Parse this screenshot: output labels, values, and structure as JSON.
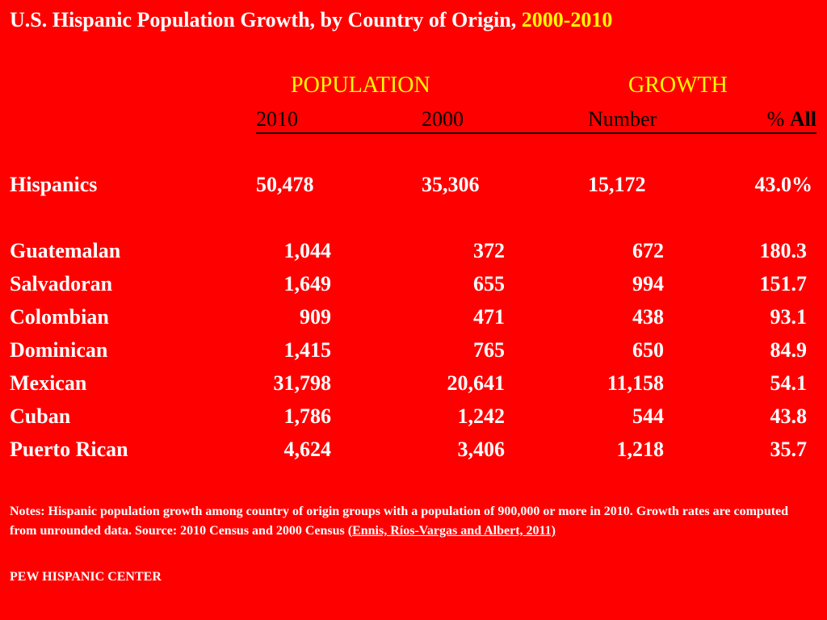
{
  "title": {
    "main": "U.S. Hispanic Population Growth, by Country of Origin, ",
    "years": "2000-2010"
  },
  "headers": {
    "population": "POPULATION",
    "growth": "GROWTH",
    "col_2010": "2010",
    "col_2000": "2000",
    "col_number": "Number",
    "col_pct_symbol": "% ",
    "col_pct_all": "All"
  },
  "total_row": {
    "label": "Hispanics",
    "pop_2010": "50,478",
    "pop_2000": "35,306",
    "growth_number": "15,172",
    "growth_pct": "43.0%"
  },
  "rows": [
    {
      "label": "Guatemalan",
      "pop_2010": "1,044",
      "pop_2000": "372",
      "growth_number": "672",
      "growth_pct": "180.3"
    },
    {
      "label": "Salvadoran",
      "pop_2010": "1,649",
      "pop_2000": "655",
      "growth_number": "994",
      "growth_pct": "151.7"
    },
    {
      "label": "Colombian",
      "pop_2010": "909",
      "pop_2000": "471",
      "growth_number": "438",
      "growth_pct": "93.1"
    },
    {
      "label": "Dominican",
      "pop_2010": "1,415",
      "pop_2000": "765",
      "growth_number": "650",
      "growth_pct": "84.9"
    },
    {
      "label": "Mexican",
      "pop_2010": "31,798",
      "pop_2000": "20,641",
      "growth_number": "11,158",
      "growth_pct": "54.1"
    },
    {
      "label": "Cuban",
      "pop_2010": "1,786",
      "pop_2000": "1,242",
      "growth_number": "544",
      "growth_pct": "43.8"
    },
    {
      "label": "Puerto Rican",
      "pop_2010": "4,624",
      "pop_2000": "3,406",
      "growth_number": "1,218",
      "growth_pct": "35.7"
    }
  ],
  "notes": {
    "text": "Notes: Hispanic population growth among country of origin groups with a population of 900,000 or more in 2010. Growth rates are computed from unrounded data. Source: 2010 Census and 2000 Census (",
    "link": "Ennis, Ríos-Vargas and Albert, 2011)"
  },
  "credit": "PEW HISPANIC CENTER",
  "colors": {
    "background": "#ff0000",
    "heading": "#ffff00",
    "text": "#ffffff",
    "subheading": "#000000"
  }
}
